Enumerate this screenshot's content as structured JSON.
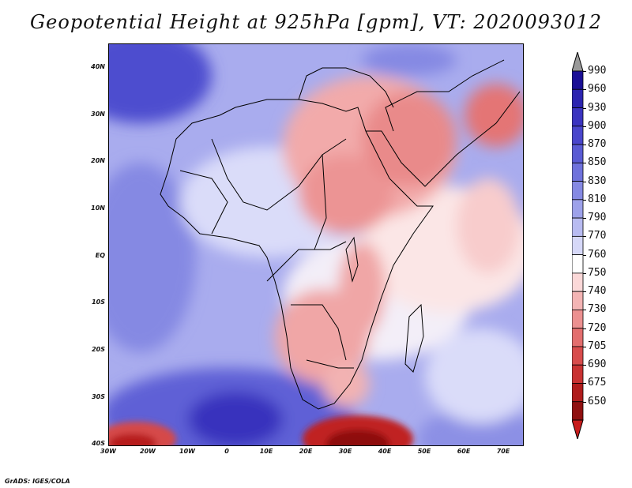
{
  "title": "Geopotential Height at 925hPa [gpm], VT: 2020093012",
  "credit": "GrADS: IGES/COLA",
  "map": {
    "lat_labels": [
      "40N",
      "30N",
      "20N",
      "10N",
      "EQ",
      "10S",
      "20S",
      "30S",
      "40S"
    ],
    "lat_values": [
      40,
      30,
      20,
      10,
      0,
      -10,
      -20,
      -30,
      -40
    ],
    "lon_labels": [
      "30W",
      "20W",
      "10W",
      "0",
      "10E",
      "20E",
      "30E",
      "40E",
      "50E",
      "60E",
      "70E"
    ],
    "lon_values": [
      -30,
      -20,
      -10,
      0,
      10,
      20,
      30,
      40,
      50,
      60,
      70
    ],
    "lat_range": [
      -40,
      45
    ],
    "lon_range": [
      -30,
      75
    ]
  },
  "colorbar": {
    "labels": [
      "990",
      "960",
      "930",
      "900",
      "870",
      "850",
      "830",
      "810",
      "790",
      "770",
      "760",
      "750",
      "740",
      "730",
      "720",
      "705",
      "690",
      "675",
      "650"
    ],
    "colors": [
      "#9a9a9a",
      "#1a0f96",
      "#2c24b0",
      "#3b34c0",
      "#4a46cc",
      "#5a5bd4",
      "#6f72dc",
      "#8589e3",
      "#9da1ea",
      "#b8bbf1",
      "#d6d8f8",
      "#ffffff",
      "#fbd8d8",
      "#f4b4b4",
      "#ec9090",
      "#e36e6e",
      "#d84c4c",
      "#c93232",
      "#b01c1c",
      "#901010",
      "#c81c1c"
    ]
  }
}
